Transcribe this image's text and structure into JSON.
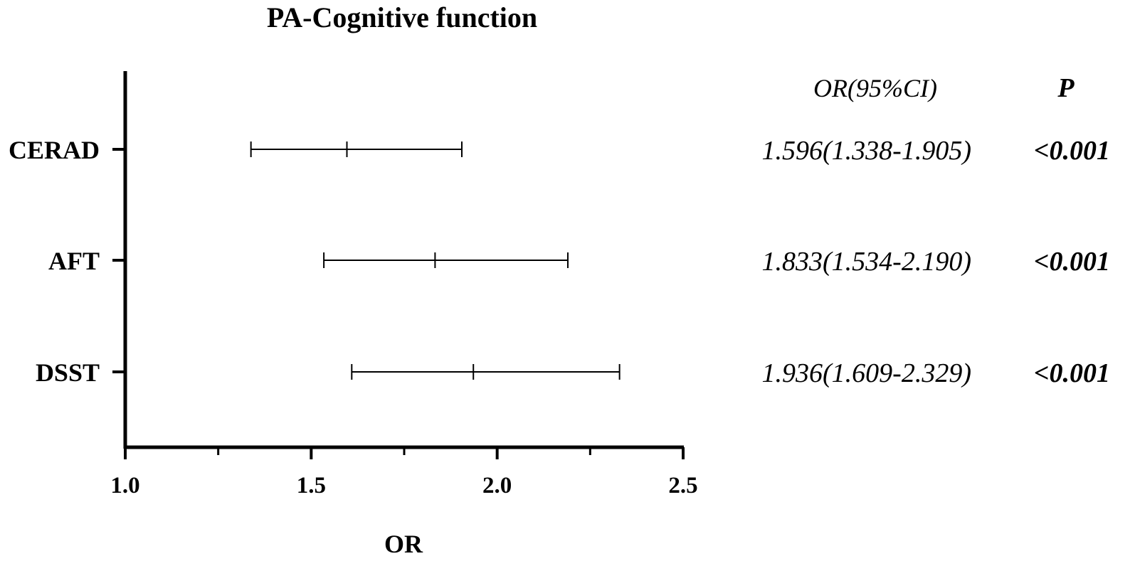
{
  "chart_data": {
    "type": "forest",
    "title": "PA-Cognitive function",
    "xlabel": "OR",
    "ylabel": "",
    "xlim": [
      1.0,
      2.5
    ],
    "x_ticks": [
      "1.0",
      "1.5",
      "2.0",
      "2.5"
    ],
    "x_tick_values": [
      1.0,
      1.5,
      2.0,
      2.5
    ],
    "x_minor_tick_values": [
      1.25,
      1.75,
      2.25
    ],
    "grid": false,
    "columns": {
      "or_ci_header": "OR(95%CI)",
      "p_header": "P"
    },
    "rows": [
      {
        "label": "CERAD",
        "or": 1.596,
        "lower": 1.338,
        "upper": 1.905,
        "or_ci_text": "1.596(1.338-1.905)",
        "p_text": "<0.001"
      },
      {
        "label": "AFT",
        "or": 1.833,
        "lower": 1.534,
        "upper": 2.19,
        "or_ci_text": "1.833(1.534-2.190)",
        "p_text": "<0.001"
      },
      {
        "label": "DSST",
        "or": 1.936,
        "lower": 1.609,
        "upper": 2.329,
        "or_ci_text": "1.936(1.609-2.329)",
        "p_text": "<0.001"
      }
    ],
    "colors": {
      "axis": "#000000",
      "marks": "#000000"
    }
  }
}
